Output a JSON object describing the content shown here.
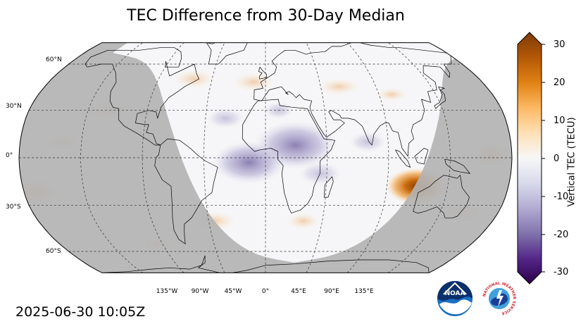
{
  "title": "TEC Difference from 30-Day Median",
  "timestamp": "2025-06-30 10:05Z",
  "map": {
    "projection": "robinson",
    "lat_labels": [
      "60°N",
      "30°N",
      "0°",
      "30°S",
      "60°S"
    ],
    "lon_labels": [
      "135°W",
      "90°W",
      "45°W",
      "0°",
      "45°E",
      "90°E",
      "135°E"
    ],
    "night_shade_color": "#b3b3b3",
    "anomalies": [
      {
        "name": "orange-peak-indian-ocean",
        "lon": 112,
        "lat": -18,
        "value": 22
      },
      {
        "name": "purple-low-central-africa",
        "lon": 22,
        "lat": 8,
        "value": -12
      },
      {
        "name": "purple-low-atlantic",
        "lon": -12,
        "lat": -3,
        "value": -8
      },
      {
        "name": "orange-pacific-west",
        "lon": -170,
        "lat": -22,
        "value": 8
      },
      {
        "name": "orange-pacific-east",
        "lon": 165,
        "lat": 2,
        "value": 5
      }
    ]
  },
  "colorbar": {
    "label": "Vertical TEC (TECU)",
    "min": -30,
    "max": 30,
    "ticks": [
      "30",
      "20",
      "10",
      "0",
      "-10",
      "-20",
      "-30"
    ],
    "colors_top_to_bottom": [
      "#7f3b08",
      "#b35806",
      "#e08214",
      "#fdb863",
      "#fee0b6",
      "#f7f7f7",
      "#d8daeb",
      "#b2abd2",
      "#8073ac",
      "#542788",
      "#2d004b"
    ]
  },
  "logos": {
    "noaa": "NOAA",
    "nws": "NATIONAL WEATHER SERVICE"
  }
}
